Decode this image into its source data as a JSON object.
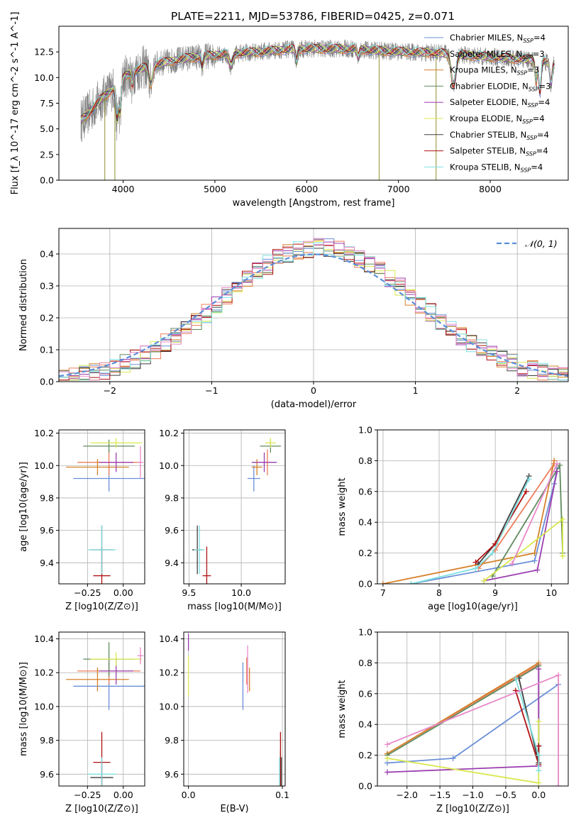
{
  "colors": {
    "Chabrier MILES": "#6a8fd8",
    "Salpeter MILES": "#ec7d5a",
    "Kroupa MILES": "#d6812a",
    "Chabrier ELODIE": "#5f8b5f",
    "Salpeter ELODIE": "#9b3fb0",
    "Kroupa ELODIE": "#d8e84e",
    "Chabrier STELIB": "#3f3f3f",
    "Salpeter STELIB": "#b01010",
    "Kroupa STELIB": "#7fe0e0",
    "Data": "#808080",
    "Pink": "#e888c8",
    "Normal": "#5b8fd8"
  },
  "chart_data": [
    {
      "id": "spectrum",
      "type": "line",
      "title": "PLATE=2211, MJD=53786, FIBERID=0425, z=0.071",
      "xlabel": "wavelength [Angstrom, rest frame]",
      "ylabel": "Flux [f_λ 10^-17 erg cm^-2 s^-1 A^-1]",
      "xlim": [
        3300,
        8850
      ],
      "ylim": [
        0,
        15
      ],
      "xticks": [
        "4000",
        "5000",
        "6000",
        "7000",
        "8000"
      ],
      "yticks": [
        "0.0",
        "2.5",
        "5.0",
        "7.5",
        "10.0",
        "12.5"
      ],
      "legend": [
        {
          "name": "Chabrier MILES",
          "nssp": "4"
        },
        {
          "name": "Salpeter MILES",
          "nssp": "3"
        },
        {
          "name": "Kroupa MILES",
          "nssp": "3"
        },
        {
          "name": "Chabrier ELODIE",
          "nssp": "3"
        },
        {
          "name": "Salpeter ELODIE",
          "nssp": "4"
        },
        {
          "name": "Kroupa ELODIE",
          "nssp": "4"
        },
        {
          "name": "Chabrier STELIB",
          "nssp": "4"
        },
        {
          "name": "Salpeter STELIB",
          "nssp": "4"
        },
        {
          "name": "Kroupa STELIB",
          "nssp": "4"
        }
      ],
      "continuum": [
        [
          3540,
          5.8
        ],
        [
          3650,
          6.8
        ],
        [
          3750,
          7.8
        ],
        [
          3850,
          8.6
        ],
        [
          3950,
          9.6
        ],
        [
          4050,
          10.3
        ],
        [
          4200,
          10.9
        ],
        [
          4400,
          11.4
        ],
        [
          4700,
          11.9
        ],
        [
          5000,
          12.2
        ],
        [
          5300,
          12.4
        ],
        [
          5600,
          12.6
        ],
        [
          5900,
          12.8
        ],
        [
          6200,
          12.8
        ],
        [
          6500,
          12.8
        ],
        [
          6800,
          12.6
        ],
        [
          7100,
          12.5
        ],
        [
          7400,
          12.4
        ],
        [
          7700,
          12.2
        ],
        [
          8000,
          12.0
        ],
        [
          8300,
          11.8
        ],
        [
          8500,
          11.7
        ],
        [
          8700,
          11.3
        ]
      ],
      "legend_location": "upper right"
    },
    {
      "id": "residuals",
      "type": "line",
      "xlabel": "(data-model)/error",
      "ylabel": "Normed distribution",
      "xlim": [
        -2.5,
        2.5
      ],
      "ylim": [
        0,
        0.48
      ],
      "xticks": [
        "−2",
        "−1",
        "0",
        "1",
        "2"
      ],
      "yticks": [
        "0.0",
        "0.1",
        "0.2",
        "0.3",
        "0.4"
      ],
      "legend": "𝒩(0, 1)",
      "grid": true,
      "bin_width": 0.1
    },
    {
      "id": "age_vs_Z",
      "type": "scatter",
      "xlabel": "Z [log10(Z/Z⊙)]",
      "ylabel": "age [log10(age/yr)]",
      "xlim": [
        -0.45,
        0.15
      ],
      "ylim": [
        9.27,
        10.22
      ],
      "xticks": [
        "−0.25",
        "0.00"
      ],
      "yticks": [
        "9.4",
        "9.6",
        "9.8",
        "10.0",
        "10.2"
      ],
      "grid": true,
      "points": [
        {
          "model": "Chabrier MILES",
          "x": -0.1,
          "y": 9.92,
          "xerr": 0.25,
          "yerr": 0.08
        },
        {
          "model": "Salpeter MILES",
          "x": -0.1,
          "y": 10.02,
          "xerr": 0.22,
          "yerr": 0.08
        },
        {
          "model": "Kroupa MILES",
          "x": -0.18,
          "y": 9.99,
          "xerr": 0.22,
          "yerr": 0.05
        },
        {
          "model": "Chabrier ELODIE",
          "x": -0.1,
          "y": 10.12,
          "xerr": 0.18,
          "yerr": 0.04
        },
        {
          "model": "Salpeter ELODIE",
          "x": -0.05,
          "y": 10.02,
          "xerr": 0.12,
          "yerr": 0.06
        },
        {
          "model": "Kroupa ELODIE",
          "x": -0.05,
          "y": 10.14,
          "xerr": 0.18,
          "yerr": 0.03
        },
        {
          "model": "Chabrier STELIB",
          "x": -0.15,
          "y": 9.48,
          "xerr": 0.08,
          "yerr": 0.15
        },
        {
          "model": "Salpeter STELIB",
          "x": -0.15,
          "y": 9.32,
          "xerr": 0.06,
          "yerr": 0.18
        },
        {
          "model": "Kroupa STELIB",
          "x": -0.15,
          "y": 9.48,
          "xerr": 0.1,
          "yerr": 0.15
        },
        {
          "model": "Pink",
          "x": 0.12,
          "y": 10.02,
          "xerr": 0.02,
          "yerr": 0.1
        }
      ]
    },
    {
      "id": "age_vs_mass",
      "type": "scatter",
      "xlabel": "mass [log10(M/M⊙)]",
      "ylabel": "",
      "xlim": [
        9.45,
        10.42
      ],
      "ylim": [
        9.27,
        10.22
      ],
      "xticks": [
        "9.5",
        "10.0"
      ],
      "yticks": [
        "9.4",
        "9.6",
        "9.8",
        "10.0",
        "10.2"
      ],
      "grid": true,
      "points": [
        {
          "model": "Chabrier MILES",
          "x": 10.12,
          "y": 9.92,
          "xerr": 0.06,
          "yerr": 0.08
        },
        {
          "model": "Salpeter MILES",
          "x": 10.25,
          "y": 10.02,
          "xerr": 0.05,
          "yerr": 0.08
        },
        {
          "model": "Kroupa MILES",
          "x": 10.15,
          "y": 9.99,
          "xerr": 0.05,
          "yerr": 0.05
        },
        {
          "model": "Chabrier ELODIE",
          "x": 10.28,
          "y": 10.12,
          "xerr": 0.1,
          "yerr": 0.04
        },
        {
          "model": "Salpeter ELODIE",
          "x": 10.22,
          "y": 10.02,
          "xerr": 0.12,
          "yerr": 0.06
        },
        {
          "model": "Kroupa ELODIE",
          "x": 10.28,
          "y": 10.14,
          "xerr": 0.05,
          "yerr": 0.03
        },
        {
          "model": "Chabrier STELIB",
          "x": 9.58,
          "y": 9.48,
          "xerr": 0.05,
          "yerr": 0.15
        },
        {
          "model": "Salpeter STELIB",
          "x": 9.67,
          "y": 9.32,
          "xerr": 0.04,
          "yerr": 0.18
        },
        {
          "model": "Kroupa STELIB",
          "x": 9.6,
          "y": 9.48,
          "xerr": 0.05,
          "yerr": 0.15
        }
      ]
    },
    {
      "id": "massweight_vs_age",
      "type": "line",
      "xlabel": "age [log10(age/yr)]",
      "ylabel": "mass weight",
      "xlim": [
        6.9,
        10.3
      ],
      "ylim": [
        0,
        1
      ],
      "xticks": [
        "7",
        "8",
        "9",
        "10"
      ],
      "yticks": [
        "0.0",
        "0.2",
        "0.4",
        "0.6",
        "0.8",
        "1.0"
      ],
      "grid": true,
      "series": [
        {
          "name": "Chabrier MILES",
          "points": [
            [
              7.5,
              0.0
            ],
            [
              9.7,
              0.15
            ],
            [
              10.05,
              0.65
            ],
            [
              10.1,
              0.75
            ]
          ]
        },
        {
          "name": "Salpeter MILES",
          "points": [
            [
              8.7,
              0.1
            ],
            [
              9.0,
              0.22
            ],
            [
              10.05,
              0.78
            ]
          ]
        },
        {
          "name": "Kroupa MILES",
          "points": [
            [
              7.0,
              0.0
            ],
            [
              9.7,
              0.2
            ],
            [
              10.05,
              0.8
            ]
          ]
        },
        {
          "name": "Chabrier ELODIE",
          "points": [
            [
              8.95,
              0.05
            ],
            [
              10.15,
              0.77
            ],
            [
              10.2,
              0.2
            ]
          ]
        },
        {
          "name": "Salpeter ELODIE",
          "points": [
            [
              8.8,
              0.02
            ],
            [
              9.75,
              0.09
            ],
            [
              10.1,
              0.73
            ]
          ]
        },
        {
          "name": "Kroupa ELODIE",
          "points": [
            [
              8.8,
              0.02
            ],
            [
              10.2,
              0.42
            ],
            [
              10.2,
              0.18
            ]
          ]
        },
        {
          "name": "Chabrier STELIB",
          "points": [
            [
              8.7,
              0.13
            ],
            [
              9.0,
              0.26
            ],
            [
              9.6,
              0.7
            ]
          ]
        },
        {
          "name": "Salpeter STELIB",
          "points": [
            [
              8.65,
              0.14
            ],
            [
              9.0,
              0.26
            ],
            [
              9.55,
              0.6
            ]
          ]
        },
        {
          "name": "Kroupa STELIB",
          "points": [
            [
              7.5,
              0.0
            ],
            [
              8.65,
              0.1
            ],
            [
              8.95,
              0.2
            ],
            [
              9.6,
              0.68
            ]
          ]
        },
        {
          "name": "Pink",
          "points": [
            [
              9.3,
              0.13
            ],
            [
              10.1,
              0.78
            ]
          ]
        }
      ]
    },
    {
      "id": "mass_vs_Z",
      "type": "scatter",
      "xlabel": "Z [log10(Z/Z⊙)]",
      "ylabel": "mass [log10(M/M⊙)]",
      "xlim": [
        -0.45,
        0.15
      ],
      "ylim": [
        9.53,
        10.44
      ],
      "xticks": [
        "−0.25",
        "0.00"
      ],
      "yticks": [
        "9.6",
        "9.8",
        "10.0",
        "10.2",
        "10.4"
      ],
      "grid": true,
      "points": [
        {
          "model": "Chabrier MILES",
          "x": -0.1,
          "y": 10.12,
          "xerr": 0.25,
          "yerr": 0.14
        },
        {
          "model": "Salpeter MILES",
          "x": -0.1,
          "y": 10.21,
          "xerr": 0.22,
          "yerr": 0.08
        },
        {
          "model": "Kroupa MILES",
          "x": -0.18,
          "y": 10.16,
          "xerr": 0.22,
          "yerr": 0.07
        },
        {
          "model": "Chabrier ELODIE",
          "x": -0.1,
          "y": 10.28,
          "xerr": 0.18,
          "yerr": 0.1
        },
        {
          "model": "Salpeter ELODIE",
          "x": -0.05,
          "y": 10.21,
          "xerr": 0.12,
          "yerr": 0.08
        },
        {
          "model": "Kroupa ELODIE",
          "x": -0.05,
          "y": 10.28,
          "xerr": 0.18,
          "yerr": 0.04
        },
        {
          "model": "Chabrier STELIB",
          "x": -0.15,
          "y": 9.58,
          "xerr": 0.08,
          "yerr": 0.1
        },
        {
          "model": "Salpeter STELIB",
          "x": -0.15,
          "y": 9.67,
          "xerr": 0.06,
          "yerr": 0.18
        },
        {
          "model": "Kroupa STELIB",
          "x": -0.15,
          "y": 9.6,
          "xerr": 0.1,
          "yerr": 0.1
        },
        {
          "model": "Pink",
          "x": 0.12,
          "y": 10.3,
          "xerr": 0.02,
          "yerr": 0.05
        }
      ]
    },
    {
      "id": "mass_vs_ebv",
      "type": "scatter",
      "xlabel": "E(B-V)",
      "ylabel": "",
      "xlim": [
        -0.005,
        0.103
      ],
      "ylim": [
        9.53,
        10.44
      ],
      "xticks": [
        "0.0",
        "0.1"
      ],
      "yticks": [
        "9.6",
        "9.8",
        "10.0",
        "10.2",
        "10.4"
      ],
      "grid": true,
      "points": [
        {
          "model": "Chabrier MILES",
          "x": 0.058,
          "y": 10.12,
          "xerr": 0,
          "yerr": 0.14
        },
        {
          "model": "Salpeter MILES",
          "x": 0.062,
          "y": 10.21,
          "xerr": 0,
          "yerr": 0.08
        },
        {
          "model": "Kroupa MILES",
          "x": 0.065,
          "y": 10.16,
          "xerr": 0,
          "yerr": 0.07
        },
        {
          "model": "Chabrier ELODIE",
          "x": 0.098,
          "y": 9.61,
          "xerr": 0,
          "yerr": 0.13
        },
        {
          "model": "Salpeter ELODIE",
          "x": 0.0,
          "y": 10.38,
          "xerr": 0,
          "yerr": 0.05
        },
        {
          "model": "Kroupa ELODIE",
          "x": 0.0,
          "y": 10.18,
          "xerr": 0,
          "yerr": 0.12
        },
        {
          "model": "Chabrier STELIB",
          "x": 0.099,
          "y": 9.6,
          "xerr": 0,
          "yerr": 0.1
        },
        {
          "model": "Salpeter STELIB",
          "x": 0.098,
          "y": 9.67,
          "xerr": 0,
          "yerr": 0.18
        },
        {
          "model": "Kroupa STELIB",
          "x": 0.097,
          "y": 9.6,
          "xerr": 0,
          "yerr": 0.1
        },
        {
          "model": "Pink",
          "x": 0.063,
          "y": 10.22,
          "xerr": 0,
          "yerr": 0.14
        }
      ]
    },
    {
      "id": "massweight_vs_Z",
      "type": "line",
      "xlabel": "Z [log10(Z/Z⊙)]",
      "ylabel": "mass weight",
      "xlim": [
        -2.45,
        0.45
      ],
      "ylim": [
        0,
        1
      ],
      "xticks": [
        "−2.0",
        "−1.5",
        "−1.0",
        "−0.5",
        "0.0"
      ],
      "yticks": [
        "0.0",
        "0.2",
        "0.4",
        "0.6",
        "0.8",
        "1.0"
      ],
      "grid": true,
      "series": [
        {
          "name": "Chabrier MILES",
          "points": [
            [
              -2.3,
              0.15
            ],
            [
              -1.3,
              0.18
            ],
            [
              0.3,
              0.66
            ]
          ]
        },
        {
          "name": "Salpeter MILES",
          "points": [
            [
              -2.3,
              0.21
            ],
            [
              0.0,
              0.79
            ]
          ]
        },
        {
          "name": "Kroupa MILES",
          "points": [
            [
              -2.3,
              0.21
            ],
            [
              0.0,
              0.8
            ]
          ]
        },
        {
          "name": "Chabrier ELODIE",
          "points": [
            [
              -2.3,
              0.2
            ],
            [
              0.0,
              0.78
            ],
            [
              0.0,
              0.2
            ]
          ]
        },
        {
          "name": "Salpeter ELODIE",
          "points": [
            [
              -2.3,
              0.09
            ],
            [
              0.0,
              0.13
            ],
            [
              0.0,
              0.76
            ]
          ]
        },
        {
          "name": "Kroupa ELODIE",
          "points": [
            [
              -2.3,
              0.18
            ],
            [
              0.0,
              0.02
            ],
            [
              0.0,
              0.42
            ]
          ]
        },
        {
          "name": "Chabrier STELIB",
          "points": [
            [
              -0.3,
              0.7
            ],
            [
              0.0,
              0.15
            ],
            [
              0.0,
              0.26
            ]
          ]
        },
        {
          "name": "Salpeter STELIB",
          "points": [
            [
              -0.35,
              0.62
            ],
            [
              0.0,
              0.14
            ],
            [
              0.0,
              0.26
            ]
          ]
        },
        {
          "name": "Kroupa STELIB",
          "points": [
            [
              -0.35,
              0.7
            ],
            [
              0.0,
              0.2
            ],
            [
              0.0,
              0.1
            ]
          ]
        },
        {
          "name": "Pink",
          "points": [
            [
              -2.3,
              0.27
            ],
            [
              0.3,
              0.72
            ],
            [
              0.3,
              0.0
            ]
          ]
        }
      ]
    }
  ]
}
